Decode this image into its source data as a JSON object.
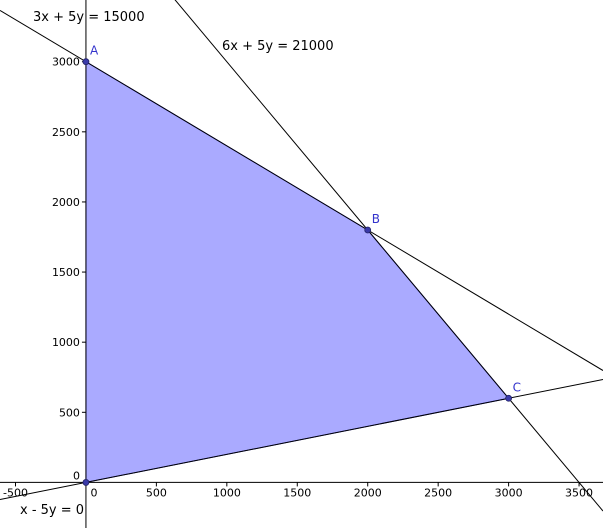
{
  "chart_data": {
    "type": "line",
    "title": "",
    "xlabel": "",
    "ylabel": "",
    "xlim": [
      -610,
      3670
    ],
    "ylim": [
      -325,
      3440
    ],
    "grid": false,
    "x_ticks": [
      -500,
      0,
      500,
      1000,
      1500,
      2000,
      2500,
      3000,
      3500
    ],
    "y_ticks": [
      0,
      500,
      1000,
      1500,
      2000,
      2500,
      3000
    ],
    "lines": [
      {
        "label": "3x + 5y = 15000",
        "a": 3,
        "b": 5,
        "c": 15000
      },
      {
        "label": "6x + 5y = 21000",
        "a": 6,
        "b": 5,
        "c": 21000
      },
      {
        "label": "x - 5y = 0",
        "a": 1,
        "b": -5,
        "c": 0
      }
    ],
    "polygon": [
      [
        0,
        0
      ],
      [
        0,
        3000
      ],
      [
        2000,
        1800
      ],
      [
        3000,
        600
      ]
    ],
    "points": [
      {
        "name": "A",
        "x": 0,
        "y": 3000
      },
      {
        "name": "B",
        "x": 2000,
        "y": 1800
      },
      {
        "name": "C",
        "x": 3000,
        "y": 600
      }
    ],
    "colors": {
      "fill": "#aaaaff",
      "edge": "#3333cc",
      "point": "#3a3aa8",
      "point_label": "#3333cc",
      "line": "#000000",
      "axis": "#000000"
    }
  }
}
